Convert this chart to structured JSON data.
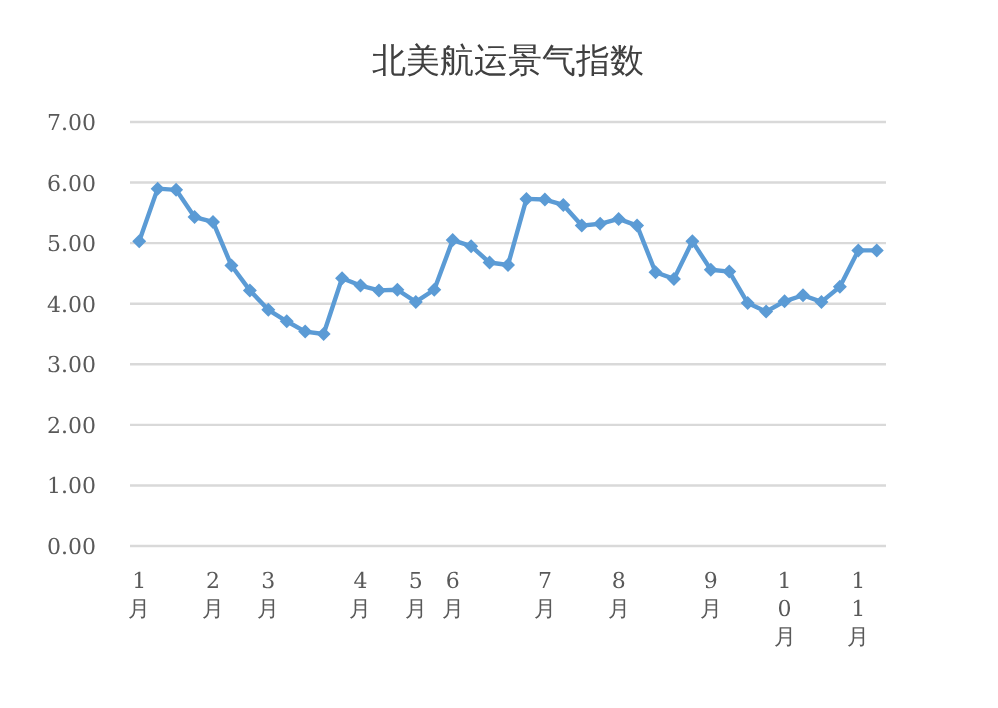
{
  "chart_data": {
    "type": "line",
    "title": "北美航运景气指数",
    "categories": [
      "1月",
      null,
      null,
      null,
      "2月",
      null,
      null,
      "3月",
      null,
      null,
      null,
      null,
      "4月",
      null,
      null,
      "5月",
      null,
      "6月",
      null,
      null,
      null,
      null,
      "7月",
      null,
      null,
      null,
      "8月",
      null,
      null,
      null,
      null,
      "9月",
      null,
      null,
      null,
      "10月",
      null,
      null,
      null,
      "11月",
      null
    ],
    "series": [
      {
        "color": "#5b9bd5",
        "values": [
          5.03,
          5.9,
          5.88,
          5.43,
          5.35,
          4.63,
          4.22,
          3.9,
          3.71,
          3.54,
          3.5,
          4.42,
          4.3,
          4.22,
          4.23,
          4.03,
          4.23,
          5.05,
          4.95,
          4.68,
          4.64,
          5.73,
          5.72,
          5.63,
          5.29,
          5.32,
          5.4,
          5.29,
          4.52,
          4.41,
          5.03,
          4.56,
          4.53,
          4.01,
          3.87,
          4.04,
          4.14,
          4.03,
          4.28,
          4.88,
          4.88
        ]
      }
    ],
    "ylim": [
      0,
      7
    ],
    "yticks": [
      {
        "value": 0,
        "label": "0.00"
      },
      {
        "value": 1,
        "label": "1.00"
      },
      {
        "value": 2,
        "label": "2.00"
      },
      {
        "value": 3,
        "label": "3.00"
      },
      {
        "value": 4,
        "label": "4.00"
      },
      {
        "value": 5,
        "label": "5.00"
      },
      {
        "value": 6,
        "label": "6.00"
      },
      {
        "value": 7,
        "label": "7.00"
      }
    ],
    "grid": "y",
    "marker": "diamond",
    "line_style": "solid"
  }
}
